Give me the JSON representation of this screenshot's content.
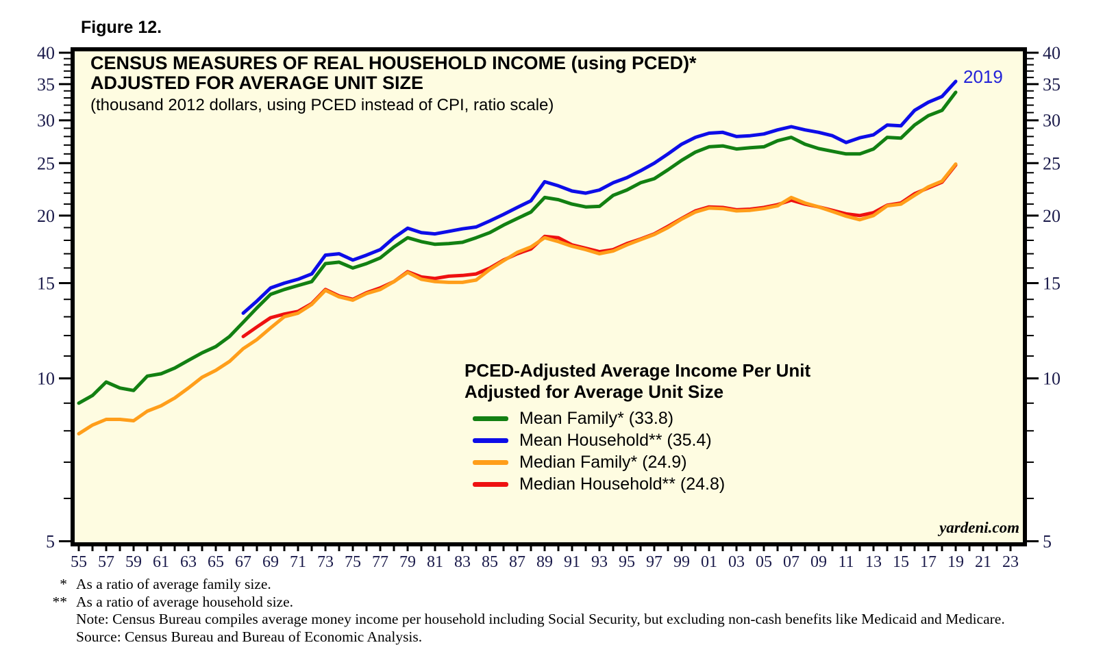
{
  "figure_label": "Figure 12.",
  "title": {
    "line1": "CENSUS MEASURES OF REAL HOUSEHOLD INCOME (using PCED)*",
    "line2": "ADJUSTED FOR AVERAGE UNIT SIZE",
    "subtitle": "(thousand 2012 dollars, using PCED instead of CPI, ratio scale)"
  },
  "annotation_2019": "2019",
  "watermark": "yardeni.com",
  "legend": {
    "title_line1": "PCED-Adjusted Average Income Per Unit",
    "title_line2": "Adjusted for Average Unit Size",
    "entries": [
      {
        "key": "mean-family",
        "label": "Mean Family* (33.8)",
        "color": "#128012"
      },
      {
        "key": "mean-household",
        "label": "Mean Household** (35.4)",
        "color": "#0D0DE8"
      },
      {
        "key": "median-family",
        "label": "Median Family* (24.9)",
        "color": "#FF9E1A"
      },
      {
        "key": "median-household",
        "label": "Median Household** (24.8)",
        "color": "#EE1111"
      }
    ]
  },
  "footnotes": [
    {
      "marker": "*",
      "text": "As a ratio of average family size."
    },
    {
      "marker": "**",
      "text": "As a ratio of average household size."
    },
    {
      "marker": "",
      "text": "Note: Census Bureau compiles average money income per household including Social Security, but excluding non-cash benefits like Medicaid and Medicare."
    },
    {
      "marker": "",
      "text": "Source: Census Bureau and Bureau of Economic Analysis."
    }
  ],
  "colors": {
    "plot_background": "#FEFCE1",
    "frame": "#000000",
    "tick_label": "#1A1A4A",
    "annotation": "#2222D8"
  },
  "chart_data": {
    "type": "line",
    "title": "CENSUS MEASURES OF REAL HOUSEHOLD INCOME (using PCED) ADJUSTED FOR AVERAGE UNIT SIZE",
    "ylabel": "thousand 2012 dollars",
    "y_axis": {
      "scale": "log",
      "min": 5,
      "max": 40,
      "major_ticks": [
        40,
        35,
        30,
        25,
        20,
        15,
        10,
        5
      ],
      "minor_tick_step": 1,
      "ticks_on_both_sides": true
    },
    "x_axis": {
      "first_year": 1955,
      "last_year": 2023,
      "tick_every_years": 1,
      "label_every_years": 2,
      "tick_labels": [
        "55",
        "57",
        "59",
        "61",
        "63",
        "65",
        "67",
        "69",
        "71",
        "73",
        "75",
        "77",
        "79",
        "81",
        "83",
        "85",
        "87",
        "89",
        "91",
        "93",
        "95",
        "97",
        "99",
        "01",
        "03",
        "05",
        "07",
        "09",
        "11",
        "13",
        "15",
        "17",
        "19",
        "21",
        "23"
      ]
    },
    "grid": false,
    "legend_position": "inside lower right",
    "series": [
      {
        "name": "Mean Family* (33.8)",
        "key": "mean-family",
        "color": "#128012",
        "start_year": 1955,
        "end_year": 2019,
        "values": [
          9.0,
          9.3,
          9.85,
          9.6,
          9.5,
          10.1,
          10.2,
          10.45,
          10.8,
          11.15,
          11.45,
          11.95,
          12.7,
          13.5,
          14.3,
          14.6,
          14.85,
          15.1,
          16.3,
          16.4,
          16.0,
          16.3,
          16.7,
          17.5,
          18.2,
          17.9,
          17.7,
          17.75,
          17.85,
          18.2,
          18.6,
          19.2,
          19.75,
          20.3,
          21.6,
          21.4,
          21.0,
          20.75,
          20.8,
          21.8,
          22.3,
          23.0,
          23.4,
          24.3,
          25.3,
          26.2,
          26.8,
          26.9,
          26.55,
          26.7,
          26.8,
          27.5,
          27.9,
          27.1,
          26.6,
          26.3,
          26.0,
          26.0,
          26.55,
          27.9,
          27.8,
          29.4,
          30.6,
          31.3,
          33.8
        ]
      },
      {
        "name": "Mean Household** (35.4)",
        "key": "mean-household",
        "color": "#0D0DE8",
        "start_year": 1967,
        "end_year": 2019,
        "values": [
          13.2,
          13.9,
          14.7,
          15.0,
          15.25,
          15.6,
          16.9,
          17.0,
          16.55,
          16.9,
          17.3,
          18.2,
          18.95,
          18.6,
          18.5,
          18.7,
          18.9,
          19.05,
          19.55,
          20.1,
          20.7,
          21.3,
          23.1,
          22.7,
          22.2,
          22.0,
          22.3,
          23.0,
          23.5,
          24.2,
          25.0,
          26.0,
          27.1,
          27.9,
          28.4,
          28.5,
          28.0,
          28.1,
          28.3,
          28.8,
          29.2,
          28.8,
          28.5,
          28.1,
          27.3,
          27.85,
          28.2,
          29.4,
          29.3,
          31.3,
          32.4,
          33.2,
          35.4
        ]
      },
      {
        "name": "Median Family* (24.9)",
        "key": "median-family",
        "color": "#FF9E1A",
        "start_year": 1955,
        "end_year": 2019,
        "values": [
          7.9,
          8.2,
          8.4,
          8.4,
          8.35,
          8.7,
          8.9,
          9.2,
          9.6,
          10.05,
          10.35,
          10.75,
          11.35,
          11.8,
          12.4,
          13.0,
          13.2,
          13.7,
          14.55,
          14.15,
          13.95,
          14.35,
          14.6,
          15.1,
          15.7,
          15.25,
          15.1,
          15.05,
          15.05,
          15.2,
          15.9,
          16.5,
          17.1,
          17.5,
          18.2,
          17.9,
          17.55,
          17.3,
          17.0,
          17.2,
          17.65,
          18.05,
          18.45,
          19.0,
          19.7,
          20.3,
          20.65,
          20.6,
          20.4,
          20.45,
          20.6,
          20.85,
          21.6,
          21.1,
          20.75,
          20.35,
          19.95,
          19.65,
          20.0,
          20.85,
          21.0,
          21.8,
          22.6,
          23.15,
          24.9
        ]
      },
      {
        "name": "Median Household** (24.8)",
        "key": "median-household",
        "color": "#EE1111",
        "start_year": 1967,
        "end_year": 2019,
        "values": [
          11.95,
          12.45,
          12.95,
          13.15,
          13.3,
          13.75,
          14.6,
          14.2,
          14.0,
          14.4,
          14.7,
          15.1,
          15.75,
          15.4,
          15.3,
          15.45,
          15.5,
          15.6,
          16.0,
          16.55,
          17.0,
          17.35,
          18.3,
          18.2,
          17.65,
          17.4,
          17.15,
          17.3,
          17.75,
          18.1,
          18.5,
          19.1,
          19.75,
          20.4,
          20.75,
          20.7,
          20.5,
          20.55,
          20.7,
          20.95,
          21.35,
          21.0,
          20.75,
          20.45,
          20.15,
          20.0,
          20.25,
          20.9,
          21.1,
          21.95,
          22.5,
          23.05,
          24.8
        ]
      }
    ],
    "annotations": [
      {
        "text": "2019",
        "series": "mean-household",
        "year": 2019,
        "color": "#2222D8"
      }
    ]
  }
}
